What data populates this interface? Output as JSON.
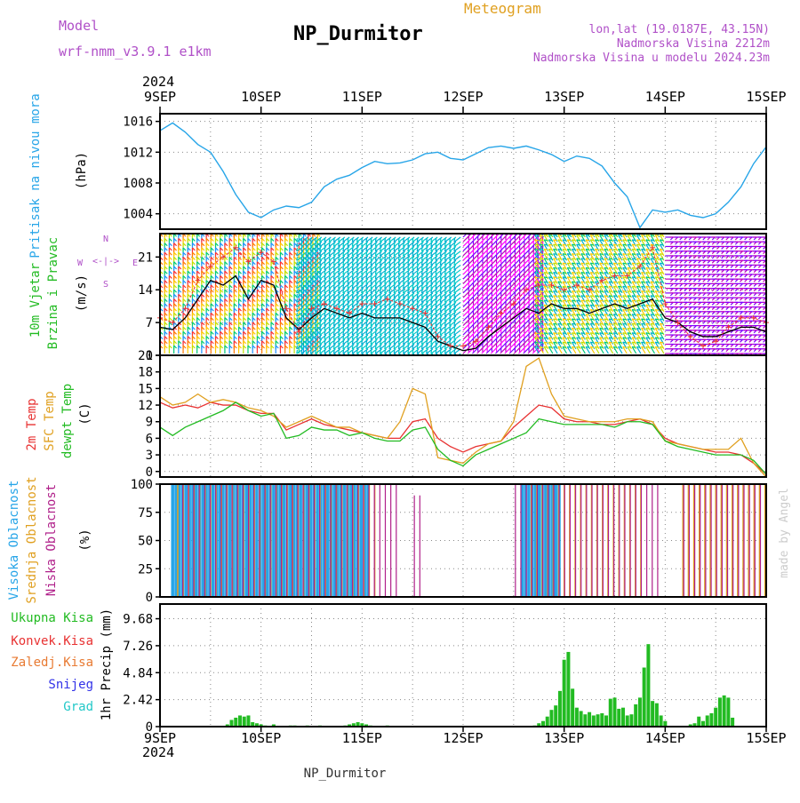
{
  "header": {
    "model_label": "Model",
    "model_name": "wrf-nmm_v3.9.1  e1km",
    "station_title": "NP_Durmitor",
    "product_title": "Meteogram",
    "coords": "lon,lat (19.0187E, 43.15N)",
    "elevation": "Nadmorska Visina 2212m",
    "model_elevation": "Nadmorska Visina u modelu 2024.23m"
  },
  "footer": {
    "station": "NP_Durmitor",
    "credit": "made by Angel"
  },
  "colors": {
    "pressure": "#27a5e8",
    "wind_speed": "#000000",
    "wind_gust": "#e83232",
    "temp2m": "#e83232",
    "sfc_temp": "#e0a020",
    "dewpoint": "#22bb22",
    "cloud_high": "#27a5e8",
    "cloud_mid": "#e0a020",
    "cloud_low": "#b0208a",
    "precip_total": "#22bb22",
    "precip_conv": "#e83232",
    "precip_freeze": "#e87a32",
    "snow": "#3232e8",
    "hail": "#22c8c8"
  },
  "chart_data": [
    {
      "type": "line",
      "panel": "pressure",
      "title": "NP_Durmitor",
      "ylabel_lines": [
        "Pritisak na nivou mora",
        "(hPa)"
      ],
      "ylim": [
        1002,
        1017
      ],
      "yticks": [
        1004,
        1008,
        1012,
        1016
      ],
      "x_unit": "hours since 2024-09-09 00 UTC",
      "x_top_labels": [
        "9SEP",
        "10SEP",
        "11SEP",
        "12SEP",
        "13SEP",
        "14SEP",
        "15SEP"
      ],
      "x_year": "2024",
      "series": [
        {
          "x": [
            0,
            3,
            6,
            9,
            12,
            15,
            18,
            21,
            24,
            27,
            30,
            33,
            36,
            39,
            42,
            45,
            48,
            51,
            54,
            57,
            60,
            63,
            66,
            69,
            72,
            75,
            78,
            81,
            84,
            87,
            90,
            93,
            96,
            99,
            102,
            105,
            108,
            111,
            114,
            117,
            120,
            123,
            126,
            129,
            132,
            135,
            138,
            141,
            144
          ],
          "values": [
            1014.8,
            1015.8,
            1014.6,
            1013,
            1012,
            1009.5,
            1006.5,
            1004.2,
            1003.5,
            1004.5,
            1005,
            1004.8,
            1005.5,
            1007.5,
            1008.5,
            1009,
            1010,
            1010.8,
            1010.5,
            1010.6,
            1011,
            1011.8,
            1012,
            1011.2,
            1011,
            1011.8,
            1012.6,
            1012.8,
            1012.5,
            1012.8,
            1012.3,
            1011.7,
            1010.8,
            1011.5,
            1011.2,
            1010.2,
            1008,
            1006.2,
            1002.2,
            1004.5,
            1004.2,
            1004.5,
            1003.8,
            1003.5,
            1004,
            1005.5,
            1007.5,
            1010.5,
            1012.7
          ]
        }
      ]
    },
    {
      "type": "line",
      "panel": "wind",
      "ylabel_lines": [
        "10m Vjetar",
        "Brzina i Pravac",
        "(m/s)"
      ],
      "compass_labels": {
        "north": "N",
        "south": "S",
        "west": "W",
        "east": "E"
      },
      "ylim": [
        0,
        26
      ],
      "yticks": [
        0,
        7,
        14,
        21
      ],
      "series": [
        {
          "name": "speed",
          "x": [
            0,
            3,
            6,
            9,
            12,
            15,
            18,
            21,
            24,
            27,
            30,
            33,
            36,
            39,
            42,
            45,
            48,
            51,
            54,
            57,
            60,
            63,
            66,
            69,
            72,
            75,
            78,
            81,
            84,
            87,
            90,
            93,
            96,
            99,
            102,
            105,
            108,
            111,
            114,
            117,
            120,
            123,
            126,
            129,
            132,
            135,
            138,
            141,
            144
          ],
          "values": [
            6,
            5.5,
            8,
            12,
            16,
            15,
            17,
            12,
            16,
            15,
            8,
            5.5,
            8,
            10,
            9,
            8,
            9,
            8,
            8,
            8,
            7,
            6,
            3,
            2,
            1,
            1.5,
            4,
            6,
            8,
            10,
            9,
            11,
            10,
            10,
            9,
            10,
            11,
            10,
            11,
            12,
            8,
            7,
            5,
            4,
            4,
            5,
            6,
            6,
            5
          ]
        },
        {
          "name": "gust",
          "x": [
            0,
            3,
            6,
            9,
            12,
            15,
            18,
            21,
            24,
            27,
            30,
            33,
            36,
            39,
            42,
            45,
            48,
            51,
            54,
            57,
            60,
            63,
            66,
            69,
            72,
            75,
            78,
            81,
            84,
            87,
            90,
            93,
            96,
            99,
            102,
            105,
            108,
            111,
            114,
            117,
            120,
            123,
            126,
            129,
            132,
            135,
            138,
            141,
            144
          ],
          "values": [
            8,
            7,
            10,
            16,
            19,
            21,
            23,
            20,
            22,
            20,
            10,
            5,
            10,
            11,
            10,
            9,
            11,
            11,
            12,
            11,
            10,
            9,
            4,
            2,
            2,
            3,
            6,
            9,
            11,
            14,
            15,
            15,
            14,
            15,
            14,
            16,
            17,
            17,
            19,
            23,
            11,
            7,
            4,
            2,
            3,
            6,
            8,
            8,
            7
          ]
        }
      ],
      "arrow_direction_bands": [
        {
          "x_range": [
            0,
            38
          ],
          "colors": [
            "#ff3030",
            "#ff7a00",
            "#ffc800",
            "#c0e000",
            "#00c878",
            "#1e90ff"
          ],
          "direction": "from S/SW (arrows pointing up)"
        },
        {
          "x_range": [
            34,
            72
          ],
          "colors": [
            "#00c8c8",
            "#00b0d0"
          ],
          "direction": "from NE/E (arrows pointing down-left)"
        },
        {
          "x_range": [
            72,
            90
          ],
          "colors": [
            "#8000ff",
            "#c000c0",
            "#ff00ff"
          ],
          "direction": "from SW (arrows pointing up-right)"
        },
        {
          "x_range": [
            90,
            120
          ],
          "colors": [
            "#ffc800",
            "#c0e000",
            "#00c878",
            "#00b0d0"
          ],
          "direction": "from SE/S (arrows pointing up-left)"
        },
        {
          "x_range": [
            120,
            144
          ],
          "colors": [
            "#8000ff",
            "#c000c0"
          ],
          "direction": "from W (arrows pointing horizontal)"
        }
      ]
    },
    {
      "type": "line",
      "panel": "temperature",
      "ylabel_lines": [
        "2m Temp",
        "SFC Temp",
        "dewpt Temp",
        "(C)"
      ],
      "ylim": [
        -1,
        21
      ],
      "yticks": [
        0,
        3,
        6,
        9,
        12,
        15,
        18,
        21
      ],
      "series": [
        {
          "name": "2m Temp",
          "x": [
            0,
            3,
            6,
            9,
            12,
            15,
            18,
            21,
            24,
            27,
            30,
            33,
            36,
            39,
            42,
            45,
            48,
            51,
            54,
            57,
            60,
            63,
            66,
            69,
            72,
            75,
            78,
            81,
            84,
            87,
            90,
            93,
            96,
            99,
            102,
            105,
            108,
            111,
            114,
            117,
            120,
            123,
            126,
            129,
            132,
            135,
            138,
            141,
            144
          ],
          "values": [
            12.5,
            11.5,
            12,
            11.5,
            12.5,
            12,
            12,
            11,
            10.5,
            10.5,
            7.5,
            8.5,
            9.5,
            8.5,
            8,
            7.5,
            7,
            6.5,
            6,
            6,
            9,
            9.5,
            6,
            4.5,
            3.5,
            4.5,
            5,
            5.5,
            8,
            10,
            12,
            11.5,
            9.5,
            9,
            9,
            8.5,
            8.5,
            9,
            9.5,
            8.5,
            6,
            5,
            4.5,
            4,
            3.5,
            3.5,
            3,
            1.5,
            -0.5
          ]
        },
        {
          "name": "SFC Temp",
          "x": [
            0,
            3,
            6,
            9,
            12,
            15,
            18,
            21,
            24,
            27,
            30,
            33,
            36,
            39,
            42,
            45,
            48,
            51,
            54,
            57,
            60,
            63,
            66,
            69,
            72,
            75,
            78,
            81,
            84,
            87,
            90,
            93,
            96,
            99,
            102,
            105,
            108,
            111,
            114,
            117,
            120,
            123,
            126,
            129,
            132,
            135,
            138,
            141,
            144
          ],
          "values": [
            13.5,
            12,
            12.5,
            14,
            12.5,
            13,
            12.5,
            11.5,
            11,
            10,
            8,
            9,
            10,
            9,
            8,
            8,
            7,
            6.5,
            6,
            9,
            15,
            14,
            2.5,
            2,
            1.5,
            3.5,
            5,
            5.5,
            9,
            19,
            20.5,
            14,
            10,
            9.5,
            9,
            9,
            9,
            9.5,
            9.5,
            9,
            5.5,
            5,
            4.5,
            4,
            4,
            4,
            6,
            1.5,
            -1
          ]
        },
        {
          "name": "dewpt Temp",
          "x": [
            0,
            3,
            6,
            9,
            12,
            15,
            18,
            21,
            24,
            27,
            30,
            33,
            36,
            39,
            42,
            45,
            48,
            51,
            54,
            57,
            60,
            63,
            66,
            69,
            72,
            75,
            78,
            81,
            84,
            87,
            90,
            93,
            96,
            99,
            102,
            105,
            108,
            111,
            114,
            117,
            120,
            123,
            126,
            129,
            132,
            135,
            138,
            141,
            144
          ],
          "values": [
            8,
            6.5,
            8,
            9,
            10,
            11,
            12.5,
            11,
            10,
            10.5,
            6,
            6.5,
            8,
            7.5,
            7.5,
            6.5,
            7,
            6,
            5.5,
            5.5,
            7.5,
            8,
            4,
            2,
            1,
            3,
            4,
            5,
            6,
            7,
            9.5,
            9,
            8.5,
            8.5,
            8.5,
            8.5,
            8,
            9,
            9,
            8.5,
            5.5,
            4.5,
            4,
            3.5,
            3,
            3,
            3,
            2,
            -0.5
          ]
        }
      ]
    },
    {
      "type": "bar",
      "panel": "clouds",
      "ylabel_lines": [
        "Visoka Oblacnost",
        "Srednja Oblacnost",
        "Niska Oblacnost",
        "(%)"
      ],
      "ylim": [
        0,
        100
      ],
      "yticks": [
        0,
        25,
        50,
        75,
        100
      ],
      "series": [
        {
          "name": "Visoka Oblacnost",
          "segments": [
            [
              3,
              50,
              100
            ],
            [
              86,
              95,
              100
            ]
          ]
        },
        {
          "name": "Srednja Oblacnost",
          "segments": [
            [
              4,
              52,
              100
            ],
            [
              88,
              114,
              100
            ],
            [
              124,
              144,
              100
            ]
          ]
        },
        {
          "name": "Niska Oblacnost",
          "segments": [
            [
              5,
              56,
              100
            ],
            [
              60,
              62,
              90
            ],
            [
              84,
              118,
              100
            ],
            [
              124,
              144,
              100
            ]
          ]
        }
      ]
    },
    {
      "type": "bar",
      "panel": "precip",
      "ylabel_lines": [
        "1hr Precip (mm)"
      ],
      "legend": [
        "Ukupna Kisa",
        "Konvek.Kisa",
        "Zaledj.Kisa",
        "Snijeg",
        "Grad"
      ],
      "ylim": [
        0,
        11
      ],
      "yticks": [
        0,
        2.42,
        4.84,
        7.26,
        9.68
      ],
      "x_bottom_labels": [
        "9SEP",
        "10SEP",
        "11SEP",
        "12SEP",
        "13SEP",
        "14SEP",
        "15SEP"
      ],
      "x_year": "2024",
      "series": [
        {
          "name": "Ukupna Kisa",
          "x": [
            16,
            17,
            18,
            19,
            20,
            21,
            22,
            23,
            24,
            25,
            27,
            31,
            32,
            35,
            38,
            44,
            45,
            46,
            47,
            48,
            49,
            50,
            54,
            89,
            90,
            91,
            92,
            93,
            94,
            95,
            96,
            97,
            98,
            99,
            100,
            101,
            102,
            103,
            104,
            105,
            106,
            107,
            108,
            109,
            110,
            111,
            112,
            113,
            114,
            115,
            116,
            117,
            118,
            119,
            120,
            126,
            127,
            128,
            129,
            130,
            131,
            132,
            133,
            134,
            135,
            136
          ],
          "values": [
            0.2,
            0.6,
            0.8,
            1.0,
            0.9,
            1.0,
            0.4,
            0.3,
            0.2,
            0.1,
            0.2,
            0.1,
            0.1,
            0.1,
            0.1,
            0.1,
            0.2,
            0.3,
            0.4,
            0.3,
            0.2,
            0.1,
            0.1,
            0.1,
            0.3,
            0.5,
            0.9,
            1.5,
            1.9,
            3.2,
            6.0,
            6.7,
            3.4,
            1.7,
            1.4,
            1.1,
            1.3,
            1.0,
            1.1,
            1.2,
            1.0,
            2.5,
            2.6,
            1.6,
            1.7,
            1.0,
            1.1,
            2.0,
            2.6,
            5.3,
            7.4,
            2.3,
            2.1,
            1.0,
            0.5,
            0.2,
            0.3,
            0.9,
            0.5,
            1.0,
            1.2,
            1.7,
            2.6,
            2.8,
            2.6,
            0.8
          ]
        }
      ]
    }
  ]
}
